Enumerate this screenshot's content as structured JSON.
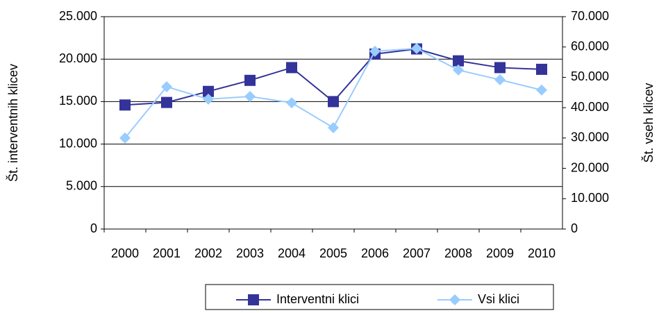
{
  "chart_data": {
    "type": "line",
    "categories": [
      "2000",
      "2001",
      "2002",
      "2003",
      "2004",
      "2005",
      "2006",
      "2007",
      "2008",
      "2009",
      "2010"
    ],
    "series": [
      {
        "name": "Interventni klici",
        "color": "#333399",
        "marker": "square",
        "values": [
          14600,
          14900,
          16200,
          17500,
          19000,
          15000,
          20600,
          21200,
          19800,
          19000,
          18800
        ]
      },
      {
        "name": "Vsi klici",
        "color": "#99ccff",
        "marker": "diamond",
        "axis": "y2",
        "values": [
          30000,
          46900,
          42800,
          43700,
          41600,
          33400,
          58600,
          59500,
          52400,
          49200,
          45800
        ]
      }
    ],
    "ylabel": "Št. interventnih klicev",
    "y2label": "Št. vseh klicev",
    "ylim": [
      0,
      25000
    ],
    "yticks": [
      0,
      {
        "value": 5000,
        "label": "5.000"
      },
      {
        "value": 10000,
        "label": "10.000"
      },
      {
        "value": 15000,
        "label": "15.000"
      },
      {
        "value": 20000,
        "label": "20.000"
      },
      {
        "value": 25000,
        "label": "25.000"
      }
    ],
    "y2lim": [
      0,
      70000
    ],
    "y2ticks": [
      0,
      {
        "value": 10000,
        "label": "10.000"
      },
      {
        "value": 20000,
        "label": "20.000"
      },
      {
        "value": 30000,
        "label": "30.000"
      },
      {
        "value": 40000,
        "label": "40.000"
      },
      {
        "value": 50000,
        "label": "50.000"
      },
      {
        "value": 60000,
        "label": "60.000"
      },
      {
        "value": 70000,
        "label": "70.000"
      }
    ],
    "grid": true,
    "legend": "bottom"
  }
}
